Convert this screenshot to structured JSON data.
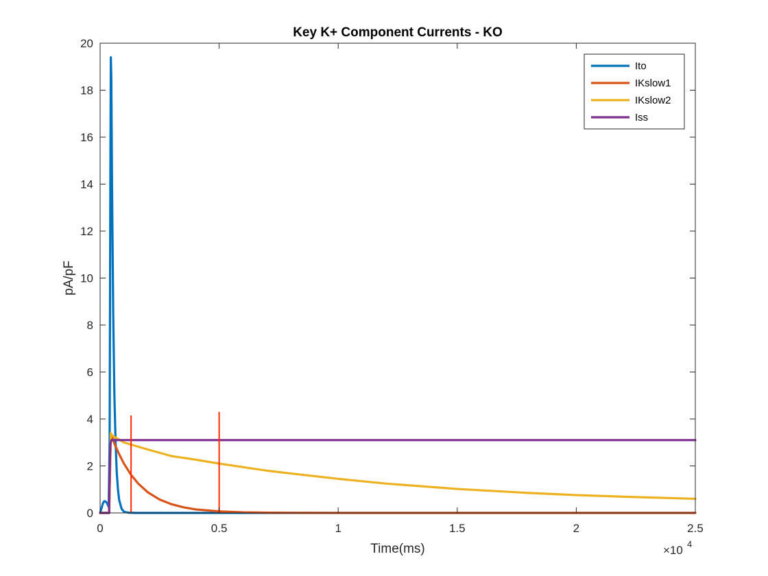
{
  "chart_data": {
    "type": "line",
    "title": "Key K+ Component Currents - KO",
    "xlabel": "Time(ms)",
    "ylabel": "pA/pF",
    "x_exponent_label": "×10",
    "x_exponent_power": "4",
    "xlim": [
      0,
      25000
    ],
    "ylim": [
      0,
      20
    ],
    "x_ticks": [
      0,
      5000,
      10000,
      15000,
      20000,
      25000
    ],
    "x_tick_labels": [
      "0",
      "0.5",
      "1",
      "1.5",
      "2",
      "2.5"
    ],
    "y_ticks": [
      0,
      2,
      4,
      6,
      8,
      10,
      12,
      14,
      16,
      18,
      20
    ],
    "y_tick_labels": [
      "0",
      "2",
      "4",
      "6",
      "8",
      "10",
      "12",
      "14",
      "16",
      "18",
      "20"
    ],
    "grid": false,
    "legend_position": "top-right",
    "series": [
      {
        "name": "Ito",
        "color": "#0072BD",
        "x": [
          0,
          60,
          120,
          180,
          240,
          300,
          360,
          400,
          430,
          450,
          470,
          500,
          550,
          600,
          650,
          700,
          750,
          800,
          900,
          1000,
          1200,
          1500,
          2000,
          5000,
          10000,
          25000
        ],
        "y": [
          0,
          0.2,
          0.42,
          0.5,
          0.48,
          0.4,
          0.25,
          3.0,
          14.0,
          19.4,
          18.5,
          14.0,
          8.5,
          5.0,
          3.0,
          1.7,
          1.0,
          0.55,
          0.18,
          0.05,
          0.01,
          0,
          0,
          0,
          0,
          0
        ]
      },
      {
        "name": "IKslow1",
        "color": "#D95319",
        "x": [
          0,
          380,
          390,
          450,
          500,
          600,
          800,
          1000,
          1300,
          1600,
          2000,
          2500,
          3000,
          3500,
          4000,
          5000,
          6000,
          7000,
          8000,
          10000,
          15000,
          25000
        ],
        "y": [
          0,
          0,
          0.4,
          3.3,
          3.25,
          2.95,
          2.5,
          2.1,
          1.62,
          1.25,
          0.88,
          0.57,
          0.37,
          0.24,
          0.15,
          0.065,
          0.027,
          0.012,
          0.005,
          0.001,
          0,
          0
        ]
      },
      {
        "name": "IKslow2",
        "color": "#EDB120",
        "x": [
          0,
          380,
          390,
          450,
          500,
          1000,
          2000,
          3000,
          4000,
          5000,
          6000,
          7000,
          8000,
          10000,
          12000,
          15000,
          18000,
          20000,
          22000,
          25000
        ],
        "y": [
          0,
          0,
          0.6,
          3.4,
          3.3,
          3.0,
          2.7,
          2.42,
          2.27,
          2.1,
          1.95,
          1.8,
          1.68,
          1.45,
          1.25,
          1.02,
          0.85,
          0.76,
          0.69,
          0.6
        ]
      },
      {
        "name": "Iss",
        "color": "#7E2F8E",
        "x": [
          0,
          380,
          390,
          430,
          470,
          25000
        ],
        "y": [
          0,
          0,
          1.0,
          2.9,
          3.1,
          3.1
        ]
      }
    ],
    "annotation_lines": [
      {
        "x": 1300,
        "y0": 0,
        "y1": 4.15,
        "color": "#FF2A00"
      },
      {
        "x": 5000,
        "y0": 0,
        "y1": 4.3,
        "color": "#FF2A00"
      }
    ]
  }
}
